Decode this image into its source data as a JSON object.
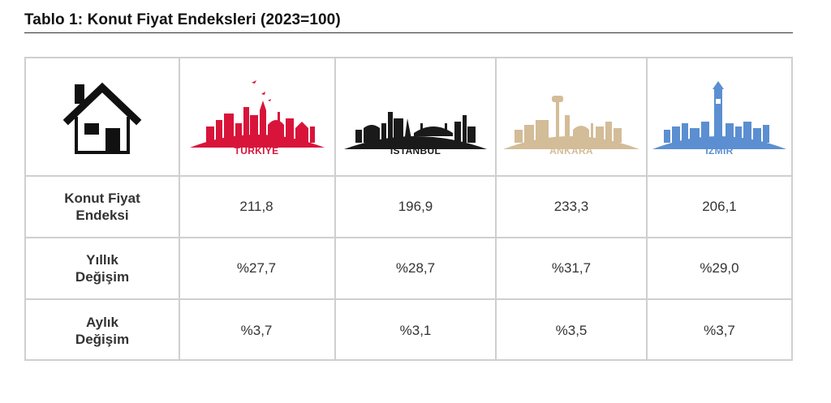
{
  "title": "Tablo 1: Konut Fiyat Endeksleri (2023=100)",
  "header": {
    "house_icon": "house-icon",
    "cities": [
      {
        "name": "TÜRKİYE",
        "color": "#d9143a",
        "icon": "turkiye-skyline-icon"
      },
      {
        "name": "İSTANBUL",
        "color": "#1a1a1a",
        "icon": "istanbul-skyline-icon"
      },
      {
        "name": "ANKARA",
        "color": "#d3bc98",
        "icon": "ankara-skyline-icon"
      },
      {
        "name": "İZMİR",
        "color": "#5b8fd1",
        "icon": "izmir-skyline-icon"
      }
    ]
  },
  "rows": [
    {
      "label_line1": "Konut Fiyat",
      "label_line2": "Endeksi",
      "values": [
        "211,8",
        "196,9",
        "233,3",
        "206,1"
      ]
    },
    {
      "label_line1": "Yıllık",
      "label_line2": "Değişim",
      "values": [
        "%27,7",
        "%28,7",
        "%31,7",
        "%29,0"
      ]
    },
    {
      "label_line1": "Aylık",
      "label_line2": "Değişim",
      "values": [
        "%3,7",
        "%3,1",
        "%3,5",
        "%3,7"
      ]
    }
  ]
}
